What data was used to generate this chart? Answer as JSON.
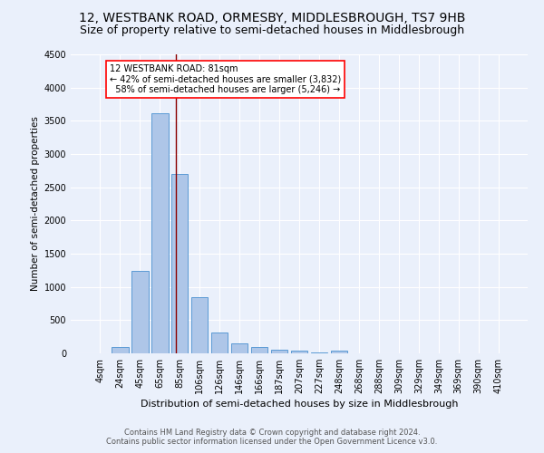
{
  "title": "12, WESTBANK ROAD, ORMESBY, MIDDLESBROUGH, TS7 9HB",
  "subtitle": "Size of property relative to semi-detached houses in Middlesbrough",
  "xlabel": "Distribution of semi-detached houses by size in Middlesbrough",
  "ylabel": "Number of semi-detached properties",
  "footer1": "Contains HM Land Registry data © Crown copyright and database right 2024.",
  "footer2": "Contains public sector information licensed under the Open Government Licence v3.0.",
  "bar_labels": [
    "4sqm",
    "24sqm",
    "45sqm",
    "65sqm",
    "85sqm",
    "106sqm",
    "126sqm",
    "146sqm",
    "166sqm",
    "187sqm",
    "207sqm",
    "227sqm",
    "248sqm",
    "268sqm",
    "288sqm",
    "309sqm",
    "329sqm",
    "349sqm",
    "369sqm",
    "390sqm",
    "410sqm"
  ],
  "bar_values": [
    0,
    90,
    1245,
    3620,
    2700,
    840,
    320,
    155,
    90,
    50,
    35,
    20,
    35,
    0,
    0,
    0,
    0,
    0,
    0,
    0,
    0
  ],
  "bar_color": "#aec6e8",
  "bar_edge_color": "#5b9bd5",
  "property_label": "12 WESTBANK ROAD: 81sqm",
  "smaller_pct": 42,
  "smaller_count": 3832,
  "larger_pct": 58,
  "larger_count": 5246,
  "ylim": [
    0,
    4500
  ],
  "background_color": "#eaf0fb",
  "plot_background": "#eaf0fb",
  "grid_color": "#ffffff",
  "title_fontsize": 10,
  "subtitle_fontsize": 9,
  "xlabel_fontsize": 8,
  "ylabel_fontsize": 7.5,
  "tick_fontsize": 7,
  "footer_fontsize": 6,
  "annot_fontsize": 7
}
